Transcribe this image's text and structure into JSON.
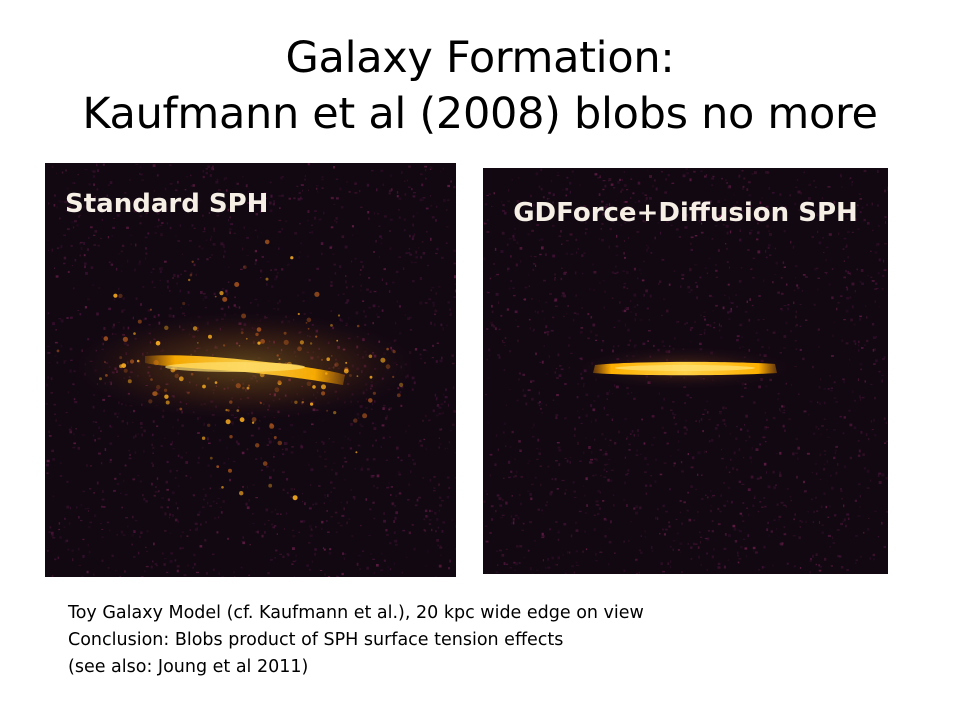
{
  "slide": {
    "title_line1": "Galaxy Formation:",
    "title_line2": "Kaufmann et al (2008) blobs no more"
  },
  "panels": {
    "left": {
      "label": "Standard SPH",
      "colors": {
        "background": "#120812",
        "disk": "#ffb000"
      }
    },
    "right": {
      "label": "GDForce+Diffusion SPH",
      "colors": {
        "background": "#120812",
        "disk": "#ffb000"
      }
    }
  },
  "caption": {
    "line1": "Toy Galaxy Model (cf. Kaufmann et al.), 20 kpc wide edge on view",
    "line2": "Conclusion: Blobs product of SPH surface tension effects",
    "line3": "(see also:  Joung et al 2011)"
  }
}
